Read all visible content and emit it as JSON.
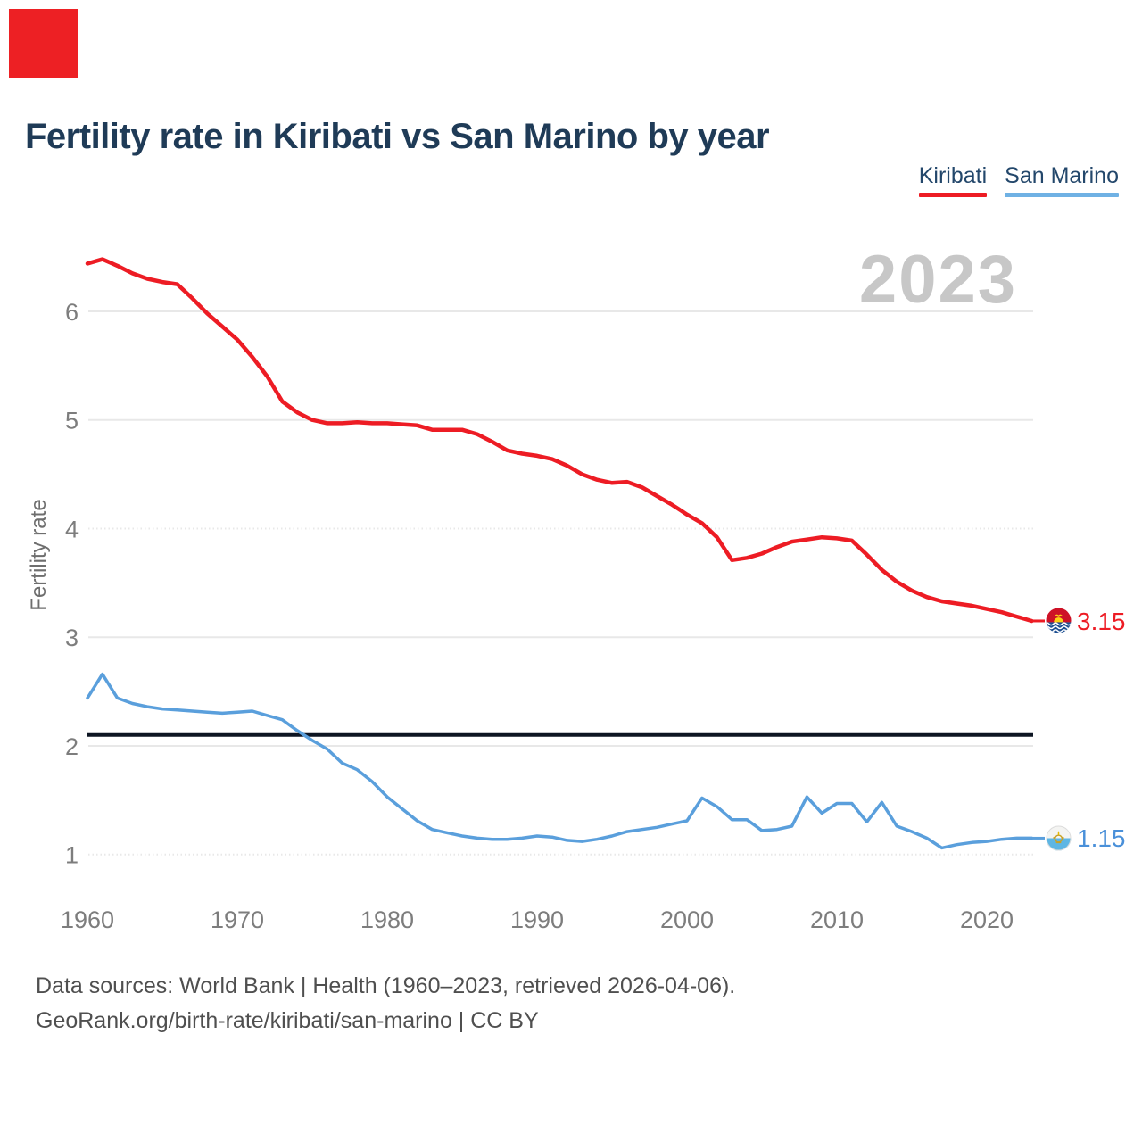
{
  "marker": {
    "color": "#ed2024"
  },
  "header": {
    "title": "Fertility rate in Kiribati vs San Marino by year"
  },
  "legend": [
    {
      "label": "Kiribati",
      "color": "#ed1c24"
    },
    {
      "label": "San Marino",
      "color": "#6fb1e4"
    }
  ],
  "watermark": "2023",
  "end_labels": {
    "kiribati": {
      "value": "3.15",
      "color": "#ed1c24"
    },
    "san_marino": {
      "value": "1.15",
      "color": "#4a90d9"
    }
  },
  "footer": {
    "line1": "Data sources: World Bank | Health (1960–2023, retrieved 2026-04-06).",
    "line2": "GeoRank.org/birth-rate/kiribati/san-marino | CC BY"
  },
  "chart_data": {
    "type": "line",
    "title": "Fertility rate in Kiribati vs San Marino by year",
    "xlabel": "",
    "ylabel": "Fertility rate",
    "xlim": [
      1960,
      2023
    ],
    "ylim": [
      0.5,
      6.6
    ],
    "grid": "horizontal",
    "y_ticks": [
      6,
      5,
      4,
      3,
      2,
      1
    ],
    "dotted_y_ticks": [
      4,
      1
    ],
    "x_ticks": [
      1960,
      1970,
      1980,
      1990,
      2000,
      2010,
      2020
    ],
    "reference_line": {
      "value": 2.1,
      "color": "#0d1522"
    },
    "x": [
      1960,
      1961,
      1962,
      1963,
      1964,
      1965,
      1966,
      1967,
      1968,
      1969,
      1970,
      1971,
      1972,
      1973,
      1974,
      1975,
      1976,
      1977,
      1978,
      1979,
      1980,
      1981,
      1982,
      1983,
      1984,
      1985,
      1986,
      1987,
      1988,
      1989,
      1990,
      1991,
      1992,
      1993,
      1994,
      1995,
      1996,
      1997,
      1998,
      1999,
      2000,
      2001,
      2002,
      2003,
      2004,
      2005,
      2006,
      2007,
      2008,
      2009,
      2010,
      2011,
      2012,
      2013,
      2014,
      2015,
      2016,
      2017,
      2018,
      2019,
      2020,
      2021,
      2022,
      2023
    ],
    "series": [
      {
        "name": "Kiribati",
        "color": "#ed1c24",
        "stroke_width": 4.5,
        "values": [
          6.44,
          6.48,
          6.42,
          6.35,
          6.3,
          6.27,
          6.25,
          6.12,
          5.98,
          5.86,
          5.74,
          5.58,
          5.4,
          5.17,
          5.07,
          5.0,
          4.97,
          4.97,
          4.98,
          4.97,
          4.97,
          4.96,
          4.95,
          4.91,
          4.91,
          4.91,
          4.87,
          4.8,
          4.72,
          4.69,
          4.67,
          4.64,
          4.58,
          4.5,
          4.45,
          4.42,
          4.43,
          4.38,
          4.3,
          4.22,
          4.13,
          4.05,
          3.92,
          3.71,
          3.73,
          3.77,
          3.83,
          3.88,
          3.9,
          3.92,
          3.91,
          3.89,
          3.76,
          3.62,
          3.51,
          3.43,
          3.37,
          3.33,
          3.31,
          3.29,
          3.26,
          3.23,
          3.19,
          3.15
        ]
      },
      {
        "name": "San Marino",
        "color": "#5a9fdc",
        "stroke_width": 3.5,
        "values": [
          2.44,
          2.66,
          2.44,
          2.39,
          2.36,
          2.34,
          2.33,
          2.32,
          2.31,
          2.3,
          2.31,
          2.32,
          2.28,
          2.24,
          2.14,
          2.05,
          1.97,
          1.84,
          1.78,
          1.67,
          1.53,
          1.42,
          1.31,
          1.23,
          1.2,
          1.17,
          1.15,
          1.14,
          1.14,
          1.15,
          1.17,
          1.16,
          1.13,
          1.12,
          1.14,
          1.17,
          1.21,
          1.23,
          1.25,
          1.28,
          1.31,
          1.52,
          1.44,
          1.32,
          1.32,
          1.22,
          1.23,
          1.26,
          1.53,
          1.38,
          1.47,
          1.47,
          1.3,
          1.48,
          1.26,
          1.21,
          1.15,
          1.06,
          1.09,
          1.11,
          1.12,
          1.14,
          1.15,
          1.15
        ]
      }
    ]
  }
}
